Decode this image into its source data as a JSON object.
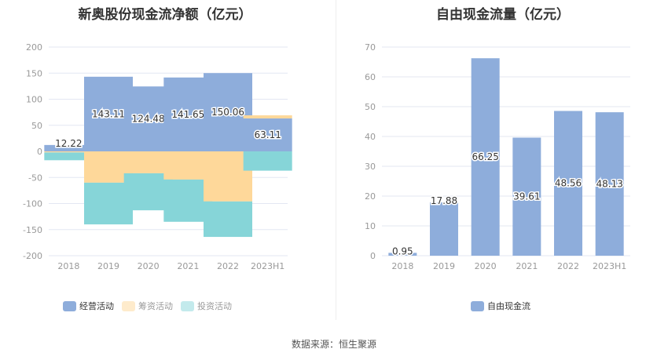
{
  "chart_data": [
    {
      "type": "bar",
      "stacked": true,
      "title": "新奥股份现金流净额（亿元）",
      "categories": [
        "2018",
        "2019",
        "2020",
        "2021",
        "2022",
        "2023H1"
      ],
      "ylim": [
        -200,
        200
      ],
      "yticks": [
        200,
        150,
        100,
        50,
        0,
        -50,
        -100,
        -150,
        -200
      ],
      "series": [
        {
          "name": "经营活动",
          "color": "#8eaddb",
          "values": [
            12.22,
            143.11,
            124.48,
            141.65,
            150.06,
            63.11
          ],
          "labels": [
            "12.22",
            "143.11",
            "124.48",
            "141.65",
            "150.06",
            "63.11"
          ]
        },
        {
          "name": "筹资活动",
          "color": "#fed89a",
          "values": [
            -2,
            -60,
            -42,
            -54,
            -96,
            6
          ]
        },
        {
          "name": "投资活动",
          "color": "#86d5d8",
          "values": [
            -15,
            -80,
            -71,
            -81,
            -68,
            -37
          ]
        }
      ],
      "legend": "bottom"
    },
    {
      "type": "bar",
      "title": "自由现金流量（亿元）",
      "categories": [
        "2018",
        "2019",
        "2020",
        "2021",
        "2022",
        "2023H1"
      ],
      "ylim": [
        0,
        70
      ],
      "yticks": [
        70,
        60,
        50,
        40,
        30,
        20,
        10,
        0
      ],
      "series": [
        {
          "name": "自由现金流",
          "color": "#8eaddb",
          "values": [
            0.95,
            17.88,
            66.25,
            39.61,
            48.56,
            48.13
          ],
          "labels": [
            "0.95",
            "17.88",
            "66.25",
            "39.61",
            "48.56",
            "48.13"
          ]
        }
      ],
      "legend": "bottom"
    }
  ],
  "source": "数据来源：恒生聚源"
}
